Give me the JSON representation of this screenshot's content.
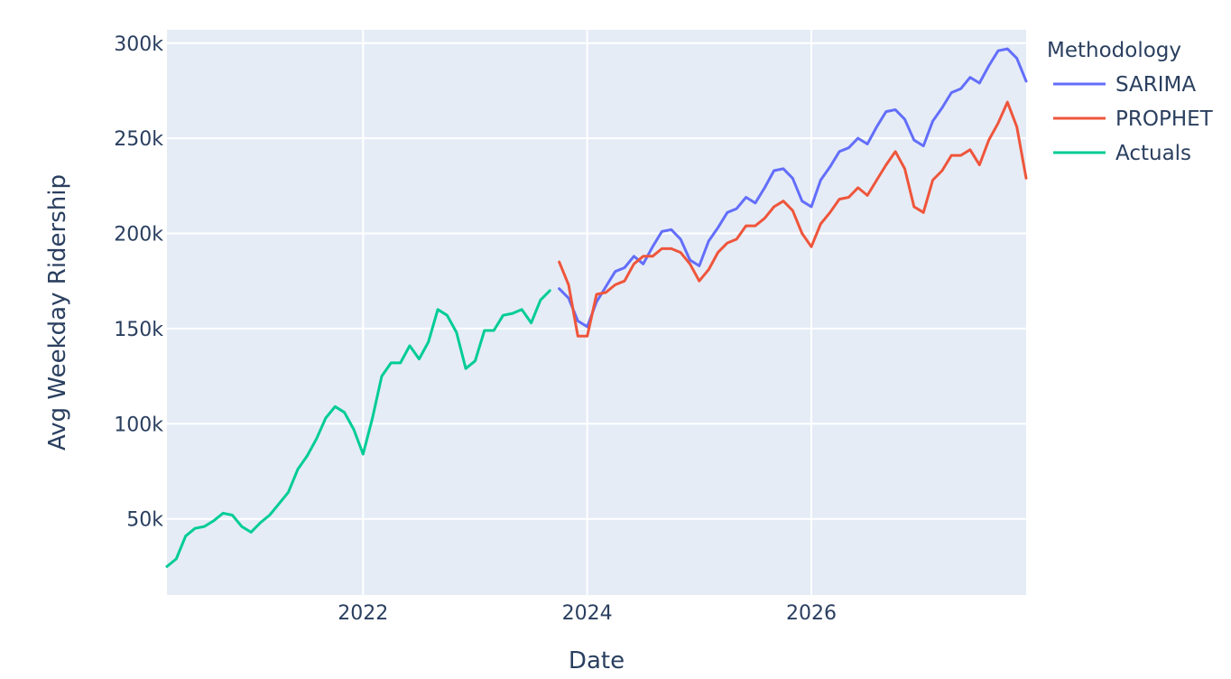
{
  "chart_data": {
    "type": "line",
    "xlabel": "Date",
    "ylabel": "Avg Weekday Ridership",
    "x_axis": {
      "type": "date",
      "range": [
        "2020-04",
        "2027-12"
      ],
      "ticks": [
        "2022",
        "2024",
        "2026"
      ]
    },
    "y_axis": {
      "range": [
        10000,
        307000
      ],
      "ticks": [
        50000,
        100000,
        150000,
        200000,
        250000,
        300000
      ],
      "tick_labels": [
        "50k",
        "100k",
        "150k",
        "200k",
        "250k",
        "300k"
      ]
    },
    "grid": true,
    "plot_background": "#e5ecf6",
    "legend": {
      "title": "Methodology",
      "placement": "top-right, outside plot"
    },
    "series": [
      {
        "name": "SARIMA",
        "color": "#636efa",
        "points": [
          [
            "2023-10",
            171000
          ],
          [
            "2023-11",
            166000
          ],
          [
            "2023-12",
            154000
          ],
          [
            "2024-01",
            151000
          ],
          [
            "2024-02",
            164000
          ],
          [
            "2024-03",
            172000
          ],
          [
            "2024-04",
            180000
          ],
          [
            "2024-05",
            182000
          ],
          [
            "2024-06",
            188000
          ],
          [
            "2024-07",
            184000
          ],
          [
            "2024-08",
            193000
          ],
          [
            "2024-09",
            201000
          ],
          [
            "2024-10",
            202000
          ],
          [
            "2024-11",
            197000
          ],
          [
            "2024-12",
            186000
          ],
          [
            "2025-01",
            183000
          ],
          [
            "2025-02",
            196000
          ],
          [
            "2025-03",
            203000
          ],
          [
            "2025-04",
            211000
          ],
          [
            "2025-05",
            213000
          ],
          [
            "2025-06",
            219000
          ],
          [
            "2025-07",
            216000
          ],
          [
            "2025-08",
            224000
          ],
          [
            "2025-09",
            233000
          ],
          [
            "2025-10",
            234000
          ],
          [
            "2025-11",
            229000
          ],
          [
            "2025-12",
            217000
          ],
          [
            "2026-01",
            214000
          ],
          [
            "2026-02",
            228000
          ],
          [
            "2026-03",
            235000
          ],
          [
            "2026-04",
            243000
          ],
          [
            "2026-05",
            245000
          ],
          [
            "2026-06",
            250000
          ],
          [
            "2026-07",
            247000
          ],
          [
            "2026-08",
            256000
          ],
          [
            "2026-09",
            264000
          ],
          [
            "2026-10",
            265000
          ],
          [
            "2026-11",
            260000
          ],
          [
            "2026-12",
            249000
          ],
          [
            "2027-01",
            246000
          ],
          [
            "2027-02",
            259000
          ],
          [
            "2027-03",
            266000
          ],
          [
            "2027-04",
            274000
          ],
          [
            "2027-05",
            276000
          ],
          [
            "2027-06",
            282000
          ],
          [
            "2027-07",
            279000
          ],
          [
            "2027-08",
            288000
          ],
          [
            "2027-09",
            296000
          ],
          [
            "2027-10",
            297000
          ],
          [
            "2027-11",
            292000
          ],
          [
            "2027-12",
            280000
          ]
        ]
      },
      {
        "name": "PROPHET",
        "color": "#ef553b",
        "points": [
          [
            "2023-10",
            185000
          ],
          [
            "2023-11",
            173000
          ],
          [
            "2023-12",
            146000
          ],
          [
            "2024-01",
            146000
          ],
          [
            "2024-02",
            168000
          ],
          [
            "2024-03",
            169000
          ],
          [
            "2024-04",
            173000
          ],
          [
            "2024-05",
            175000
          ],
          [
            "2024-06",
            184000
          ],
          [
            "2024-07",
            188000
          ],
          [
            "2024-08",
            188000
          ],
          [
            "2024-09",
            192000
          ],
          [
            "2024-10",
            192000
          ],
          [
            "2024-11",
            190000
          ],
          [
            "2024-12",
            184000
          ],
          [
            "2025-01",
            175000
          ],
          [
            "2025-02",
            181000
          ],
          [
            "2025-03",
            190000
          ],
          [
            "2025-04",
            195000
          ],
          [
            "2025-05",
            197000
          ],
          [
            "2025-06",
            204000
          ],
          [
            "2025-07",
            204000
          ],
          [
            "2025-08",
            208000
          ],
          [
            "2025-09",
            214000
          ],
          [
            "2025-10",
            217000
          ],
          [
            "2025-11",
            212000
          ],
          [
            "2025-12",
            200000
          ],
          [
            "2026-01",
            193000
          ],
          [
            "2026-02",
            205000
          ],
          [
            "2026-03",
            211000
          ],
          [
            "2026-04",
            218000
          ],
          [
            "2026-05",
            219000
          ],
          [
            "2026-06",
            224000
          ],
          [
            "2026-07",
            220000
          ],
          [
            "2026-08",
            228000
          ],
          [
            "2026-09",
            236000
          ],
          [
            "2026-10",
            243000
          ],
          [
            "2026-11",
            234000
          ],
          [
            "2026-12",
            214000
          ],
          [
            "2027-01",
            211000
          ],
          [
            "2027-02",
            228000
          ],
          [
            "2027-03",
            233000
          ],
          [
            "2027-04",
            241000
          ],
          [
            "2027-05",
            241000
          ],
          [
            "2027-06",
            244000
          ],
          [
            "2027-07",
            236000
          ],
          [
            "2027-08",
            249000
          ],
          [
            "2027-09",
            258000
          ],
          [
            "2027-10",
            269000
          ],
          [
            "2027-11",
            256000
          ],
          [
            "2027-12",
            229000
          ]
        ]
      },
      {
        "name": "Actuals",
        "color": "#00cc96",
        "points": [
          [
            "2020-04",
            25000
          ],
          [
            "2020-05",
            29000
          ],
          [
            "2020-06",
            41000
          ],
          [
            "2020-07",
            45000
          ],
          [
            "2020-08",
            46000
          ],
          [
            "2020-09",
            49000
          ],
          [
            "2020-10",
            53000
          ],
          [
            "2020-11",
            52000
          ],
          [
            "2020-12",
            46000
          ],
          [
            "2021-01",
            43000
          ],
          [
            "2021-02",
            48000
          ],
          [
            "2021-03",
            52000
          ],
          [
            "2021-04",
            58000
          ],
          [
            "2021-05",
            64000
          ],
          [
            "2021-06",
            76000
          ],
          [
            "2021-07",
            83000
          ],
          [
            "2021-08",
            92000
          ],
          [
            "2021-09",
            103000
          ],
          [
            "2021-10",
            109000
          ],
          [
            "2021-11",
            106000
          ],
          [
            "2021-12",
            97000
          ],
          [
            "2022-01",
            84000
          ],
          [
            "2022-02",
            103000
          ],
          [
            "2022-03",
            125000
          ],
          [
            "2022-04",
            132000
          ],
          [
            "2022-05",
            132000
          ],
          [
            "2022-06",
            141000
          ],
          [
            "2022-07",
            134000
          ],
          [
            "2022-08",
            143000
          ],
          [
            "2022-09",
            160000
          ],
          [
            "2022-10",
            157000
          ],
          [
            "2022-11",
            148000
          ],
          [
            "2022-12",
            129000
          ],
          [
            "2023-01",
            133000
          ],
          [
            "2023-02",
            149000
          ],
          [
            "2023-03",
            149000
          ],
          [
            "2023-04",
            157000
          ],
          [
            "2023-05",
            158000
          ],
          [
            "2023-06",
            160000
          ],
          [
            "2023-07",
            153000
          ],
          [
            "2023-08",
            165000
          ],
          [
            "2023-09",
            170000
          ]
        ]
      }
    ]
  }
}
